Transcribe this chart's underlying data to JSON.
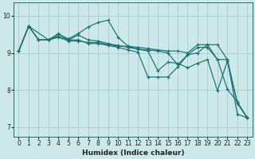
{
  "xlabel": "Humidex (Indice chaleur)",
  "bg_color": "#cce8e8",
  "line_color": "#1a7070",
  "grid_color": "#aad0d0",
  "xlim": [
    -0.5,
    23.5
  ],
  "ylim": [
    6.75,
    10.35
  ],
  "yticks": [
    7,
    8,
    9,
    10
  ],
  "xticks": [
    0,
    1,
    2,
    3,
    4,
    5,
    6,
    7,
    8,
    9,
    10,
    11,
    12,
    13,
    14,
    15,
    16,
    17,
    18,
    19,
    20,
    21,
    22,
    23
  ],
  "lines": [
    {
      "x": [
        0,
        1,
        2,
        3,
        4,
        5,
        6,
        7,
        8,
        9,
        10,
        11,
        12,
        13,
        14,
        15,
        16,
        17,
        18,
        19,
        20,
        21,
        22,
        23
      ],
      "y": [
        9.05,
        9.72,
        9.35,
        9.35,
        9.42,
        9.32,
        9.32,
        9.28,
        9.28,
        9.22,
        9.18,
        9.18,
        9.15,
        9.12,
        9.08,
        9.05,
        9.05,
        9.0,
        9.22,
        9.22,
        9.22,
        8.82,
        7.35,
        7.25
      ]
    },
    {
      "x": [
        0,
        1,
        2,
        3,
        4,
        5,
        6,
        7,
        8,
        9,
        10,
        11,
        12,
        13,
        14,
        15,
        16,
        17,
        18,
        19,
        20,
        21,
        22,
        23
      ],
      "y": [
        9.05,
        9.72,
        9.35,
        9.35,
        9.5,
        9.38,
        9.52,
        9.7,
        9.82,
        9.88,
        9.42,
        9.18,
        9.1,
        9.05,
        8.52,
        8.75,
        8.72,
        8.6,
        8.72,
        8.82,
        7.98,
        8.78,
        7.65,
        7.25
      ]
    },
    {
      "x": [
        0,
        1,
        2,
        3,
        4,
        5,
        6,
        7,
        8,
        9,
        10,
        11,
        12,
        13,
        14,
        15,
        16,
        17,
        18,
        19,
        20,
        21,
        22,
        23
      ],
      "y": [
        9.05,
        9.72,
        9.35,
        9.35,
        9.52,
        9.35,
        9.48,
        9.35,
        9.32,
        9.25,
        9.2,
        9.15,
        9.1,
        9.08,
        9.05,
        9.0,
        8.68,
        8.95,
        9.15,
        9.15,
        8.82,
        8.82,
        7.65,
        7.25
      ]
    },
    {
      "x": [
        0,
        1,
        3,
        4,
        5,
        6,
        7,
        8,
        9,
        10,
        11,
        12,
        13,
        14,
        15,
        16,
        17,
        18,
        19,
        20,
        21,
        22,
        23
      ],
      "y": [
        9.05,
        9.72,
        9.35,
        9.45,
        9.35,
        9.35,
        9.25,
        9.25,
        9.2,
        9.15,
        9.08,
        9.02,
        8.35,
        8.35,
        8.35,
        8.62,
        8.95,
        9.0,
        9.22,
        8.82,
        8.02,
        7.68,
        7.25
      ]
    }
  ]
}
